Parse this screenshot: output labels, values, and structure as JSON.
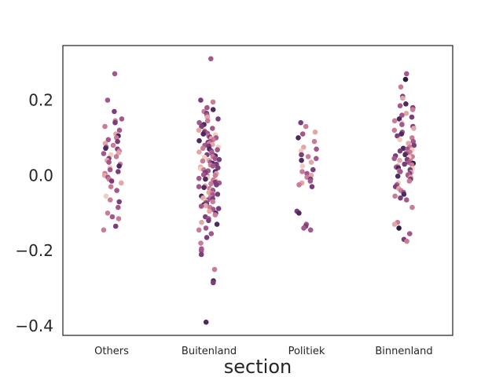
{
  "chart_data": {
    "type": "scatter",
    "subtype": "strip",
    "title": "",
    "xlabel": "section",
    "ylabel": "",
    "ylim": [
      -0.425,
      0.345
    ],
    "yticks": [
      -0.4,
      -0.2,
      0.0,
      0.2
    ],
    "ytick_labels": [
      "−0.4",
      "−0.2",
      "0.0",
      "0.2"
    ],
    "categories": [
      "Others",
      "Buitenland",
      "Politiek",
      "Binnenland"
    ],
    "grid": false,
    "legend": "none",
    "palette": [
      "#f1cdc0",
      "#e3a6a6",
      "#c97b98",
      "#a4578c",
      "#7a3f7a",
      "#4e2b5e",
      "#2a1a3d"
    ],
    "series": [
      {
        "category": "Others",
        "values": [
          0.27,
          0.2,
          0.17,
          0.15,
          0.145,
          0.14,
          0.13,
          0.12,
          0.11,
          0.105,
          0.1,
          0.095,
          0.09,
          0.085,
          0.08,
          0.075,
          0.072,
          0.07,
          0.065,
          0.06,
          0.058,
          0.055,
          0.05,
          0.045,
          0.04,
          0.035,
          0.03,
          0.025,
          0.02,
          0.015,
          0.01,
          0.005,
          0.0,
          -0.005,
          -0.01,
          -0.015,
          -0.02,
          -0.03,
          -0.04,
          -0.055,
          -0.065,
          -0.07,
          -0.085,
          -0.1,
          -0.11,
          -0.115,
          -0.135,
          -0.145
        ],
        "colors": [
          3,
          3,
          4,
          3,
          2,
          4,
          2,
          3,
          1,
          5,
          2,
          3,
          4,
          1,
          2,
          3,
          5,
          4,
          2,
          1,
          3,
          0,
          2,
          4,
          1,
          3,
          2,
          5,
          0,
          3,
          4,
          2,
          1,
          3,
          2,
          4,
          1,
          2,
          3,
          0,
          2,
          4,
          3,
          2,
          3,
          2,
          4,
          2
        ]
      },
      {
        "category": "Buitenland",
        "values": [
          0.31,
          0.2,
          0.195,
          0.18,
          0.175,
          0.17,
          0.165,
          0.16,
          0.155,
          0.15,
          0.145,
          0.14,
          0.135,
          0.13,
          0.125,
          0.12,
          0.118,
          0.115,
          0.112,
          0.11,
          0.108,
          0.105,
          0.102,
          0.1,
          0.098,
          0.095,
          0.092,
          0.09,
          0.088,
          0.085,
          0.082,
          0.08,
          0.078,
          0.075,
          0.072,
          0.07,
          0.068,
          0.065,
          0.062,
          0.06,
          0.058,
          0.055,
          0.052,
          0.05,
          0.048,
          0.045,
          0.042,
          0.04,
          0.038,
          0.035,
          0.032,
          0.03,
          0.028,
          0.025,
          0.022,
          0.02,
          0.018,
          0.015,
          0.012,
          0.01,
          0.008,
          0.005,
          0.002,
          0.0,
          -0.002,
          -0.005,
          -0.008,
          -0.01,
          -0.012,
          -0.015,
          -0.018,
          -0.02,
          -0.022,
          -0.025,
          -0.028,
          -0.03,
          -0.032,
          -0.035,
          -0.038,
          -0.04,
          -0.042,
          -0.045,
          -0.048,
          -0.05,
          -0.052,
          -0.055,
          -0.058,
          -0.06,
          -0.062,
          -0.065,
          -0.068,
          -0.07,
          -0.072,
          -0.075,
          -0.078,
          -0.08,
          -0.082,
          -0.085,
          -0.088,
          -0.09,
          -0.095,
          -0.1,
          -0.105,
          -0.11,
          -0.115,
          -0.12,
          -0.125,
          -0.13,
          -0.14,
          -0.145,
          -0.155,
          -0.165,
          -0.18,
          -0.195,
          -0.2,
          -0.21,
          -0.25,
          -0.28,
          -0.285,
          -0.39
        ],
        "colors": [
          3,
          4,
          2,
          3,
          5,
          2,
          4,
          3,
          1,
          4,
          2,
          3,
          5,
          4,
          3,
          1,
          2,
          4,
          3,
          5,
          0,
          2,
          4,
          3,
          1,
          2,
          5,
          3,
          4,
          2,
          1,
          3,
          4,
          0,
          2,
          5,
          3,
          4,
          1,
          2,
          3,
          4,
          5,
          2,
          0,
          3,
          4,
          1,
          2,
          3,
          5,
          4,
          2,
          3,
          1,
          4,
          0,
          2,
          3,
          5,
          4,
          1,
          3,
          2,
          4,
          0,
          3,
          5,
          2,
          1,
          4,
          3,
          2,
          4,
          1,
          3,
          5,
          2,
          0,
          4,
          3,
          1,
          2,
          4,
          3,
          5,
          2,
          1,
          4,
          3,
          0,
          2,
          3,
          4,
          5,
          1,
          3,
          2,
          4,
          3,
          1,
          5,
          2,
          4,
          3,
          4,
          1,
          5,
          3,
          2,
          3,
          4,
          2,
          3,
          3,
          4,
          2,
          5,
          4,
          5
        ]
      },
      {
        "category": "Politiek",
        "values": [
          0.14,
          0.13,
          0.115,
          0.11,
          0.1,
          0.09,
          0.075,
          0.07,
          0.065,
          0.055,
          0.05,
          0.045,
          0.04,
          0.035,
          0.025,
          0.015,
          0.01,
          0.005,
          0.0,
          -0.005,
          -0.01,
          -0.015,
          -0.02,
          -0.025,
          -0.03,
          -0.095,
          -0.1,
          -0.13,
          -0.135,
          -0.14,
          -0.145
        ],
        "colors": [
          4,
          2,
          1,
          3,
          5,
          2,
          1,
          3,
          0,
          4,
          2,
          3,
          5,
          1,
          0,
          4,
          2,
          3,
          1,
          2,
          4,
          3,
          1,
          2,
          4,
          4,
          5,
          3,
          4,
          3,
          3
        ]
      },
      {
        "category": "Binnenland",
        "values": [
          0.27,
          0.255,
          0.235,
          0.21,
          0.205,
          0.19,
          0.185,
          0.18,
          0.175,
          0.165,
          0.16,
          0.155,
          0.15,
          0.145,
          0.14,
          0.135,
          0.13,
          0.125,
          0.12,
          0.115,
          0.11,
          0.105,
          0.1,
          0.095,
          0.09,
          0.085,
          0.08,
          0.075,
          0.072,
          0.07,
          0.068,
          0.065,
          0.062,
          0.06,
          0.058,
          0.055,
          0.052,
          0.05,
          0.048,
          0.045,
          0.042,
          0.04,
          0.038,
          0.035,
          0.032,
          0.03,
          0.028,
          0.025,
          0.022,
          0.02,
          0.018,
          0.015,
          0.012,
          0.01,
          0.008,
          0.005,
          0.002,
          0.0,
          -0.002,
          -0.005,
          -0.01,
          -0.015,
          -0.02,
          -0.025,
          -0.03,
          -0.035,
          -0.04,
          -0.045,
          -0.05,
          -0.055,
          -0.06,
          -0.065,
          -0.085,
          -0.125,
          -0.13,
          -0.14,
          -0.155,
          -0.17,
          -0.175
        ],
        "colors": [
          3,
          6,
          2,
          4,
          1,
          5,
          3,
          4,
          2,
          1,
          3,
          4,
          5,
          2,
          0,
          3,
          4,
          1,
          2,
          3,
          5,
          4,
          2,
          0,
          3,
          1,
          4,
          2,
          5,
          3,
          0,
          4,
          2,
          1,
          3,
          5,
          4,
          2,
          0,
          3,
          4,
          1,
          2,
          3,
          6,
          4,
          2,
          1,
          3,
          5,
          0,
          4,
          2,
          3,
          1,
          4,
          2,
          3,
          5,
          1,
          4,
          2,
          0,
          3,
          4,
          1,
          2,
          3,
          5,
          2,
          4,
          3,
          2,
          2,
          1,
          6,
          3,
          4,
          2
        ]
      }
    ]
  }
}
